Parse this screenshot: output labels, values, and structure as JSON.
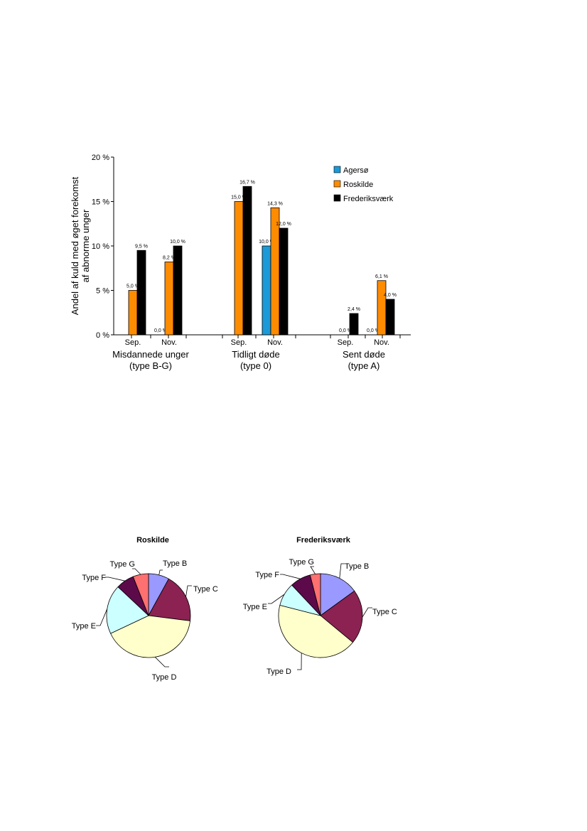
{
  "chart_data": [
    {
      "type": "bar",
      "ylabel_lines": [
        "Andel af kuld med øget forekomst",
        "af abnorme unger"
      ],
      "ylim": [
        0,
        20
      ],
      "yticks": [
        "0 %",
        "5 %",
        "10 %",
        "15 %",
        "20 %"
      ],
      "ytick_values": [
        0,
        5,
        10,
        15,
        20
      ],
      "groups": [
        {
          "label_lines": [
            "Misdannede unger",
            "(type B-G)"
          ],
          "months": [
            {
              "month": "Sep.",
              "values": [
                null,
                5.0,
                9.5
              ],
              "labels": [
                "",
                "5,0 %",
                "9,5 %"
              ]
            },
            {
              "month": "Nov.",
              "values": [
                0.0,
                8.2,
                10.0
              ],
              "labels": [
                "0,0 %",
                "8,2 %",
                "10,0 %"
              ]
            }
          ]
        },
        {
          "label_lines": [
            "Tidligt døde",
            "(type 0)"
          ],
          "months": [
            {
              "month": "Sep.",
              "values": [
                null,
                15.0,
                16.7
              ],
              "labels": [
                "",
                "15,0 %",
                "16,7 %"
              ]
            },
            {
              "month": "Nov.",
              "values": [
                10.0,
                14.3,
                12.0
              ],
              "labels": [
                "10,0 %",
                "14,3 %",
                "12,0 %"
              ]
            }
          ]
        },
        {
          "label_lines": [
            "Sent døde",
            "(type A)"
          ],
          "months": [
            {
              "month": "Sep.",
              "values": [
                null,
                0.0,
                2.4
              ],
              "labels": [
                "",
                "0,0 %",
                "2,4 %"
              ]
            },
            {
              "month": "Nov.",
              "values": [
                0.0,
                6.1,
                4.0
              ],
              "labels": [
                "0,0 %",
                "6,1 %",
                "4,0 %"
              ]
            }
          ]
        }
      ],
      "series": [
        {
          "name": "Agersø",
          "color": "#1a9ad9"
        },
        {
          "name": "Roskilde",
          "color": "#ff8c00"
        },
        {
          "name": "Frederiksværk",
          "color": "#000000"
        }
      ],
      "legend_position": "top-right",
      "grid": false
    },
    {
      "type": "pie",
      "title": "Roskilde",
      "slices": [
        {
          "label": "Type B",
          "value": 8,
          "color": "#9999ff"
        },
        {
          "label": "Type C",
          "value": 19,
          "color": "#8b2252"
        },
        {
          "label": "Type D",
          "value": 41,
          "color": "#ffffcc"
        },
        {
          "label": "Type E",
          "value": 19,
          "color": "#ccffff"
        },
        {
          "label": "Type F",
          "value": 7,
          "color": "#5c0a4a"
        },
        {
          "label": "Type G",
          "value": 6,
          "color": "#ff7070"
        }
      ]
    },
    {
      "type": "pie",
      "title": "Frederiksværk",
      "slices": [
        {
          "label": "Type B",
          "value": 15,
          "color": "#9999ff"
        },
        {
          "label": "Type C",
          "value": 21,
          "color": "#8b2252"
        },
        {
          "label": "Type D",
          "value": 43,
          "color": "#ffffcc"
        },
        {
          "label": "Type E",
          "value": 9,
          "color": "#ccffff"
        },
        {
          "label": "Type F",
          "value": 8,
          "color": "#5c0a4a"
        },
        {
          "label": "Type G",
          "value": 4,
          "color": "#ff7070"
        }
      ]
    }
  ]
}
